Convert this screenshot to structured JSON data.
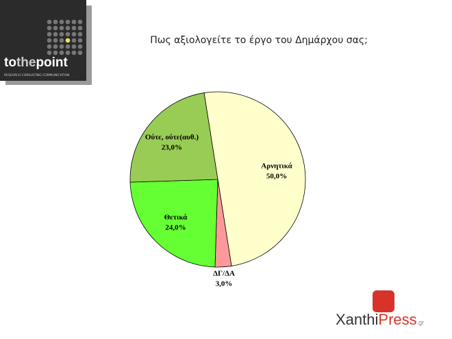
{
  "chart_data": {
    "type": "pie",
    "title": "Πως αξιολογείτε το έργο του Δημάρχου σας;",
    "categories": [
      "Αρνητικά",
      "ΔΓ/ΔΑ",
      "Θετικά",
      "Ούτε, ούτε(αυθ.)"
    ],
    "values": [
      50,
      3,
      24,
      23
    ],
    "value_labels": [
      "50,0%",
      "3,0%",
      "24,0%",
      "23,0%"
    ],
    "colors": [
      "#ffffcc",
      "#ff9999",
      "#66ff33",
      "#99cc55"
    ]
  },
  "branding": {
    "logo_parts": [
      "to",
      "the",
      "point"
    ],
    "logo_tagline": "RESEARCH  CONSULTING  COMMUNICATION",
    "press_parts": [
      "Xanthi",
      "Press",
      ".gr"
    ]
  }
}
